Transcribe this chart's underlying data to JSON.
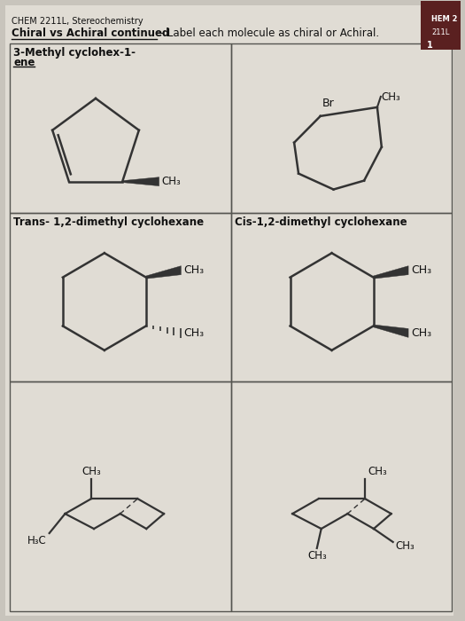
{
  "title_small": "CHEM 2211L, Stereochemistry",
  "bg_color": "#c8c4bc",
  "paper_color": "#e0dcd4",
  "line_color": "#333333",
  "text_color": "#111111",
  "cell_labels": [
    "3-Methyl cyclohex-1-ene",
    "",
    "Trans- 1,2-dimethyl cyclohexane",
    "Cis-1,2-dimethyl cyclohexane",
    "",
    ""
  ]
}
